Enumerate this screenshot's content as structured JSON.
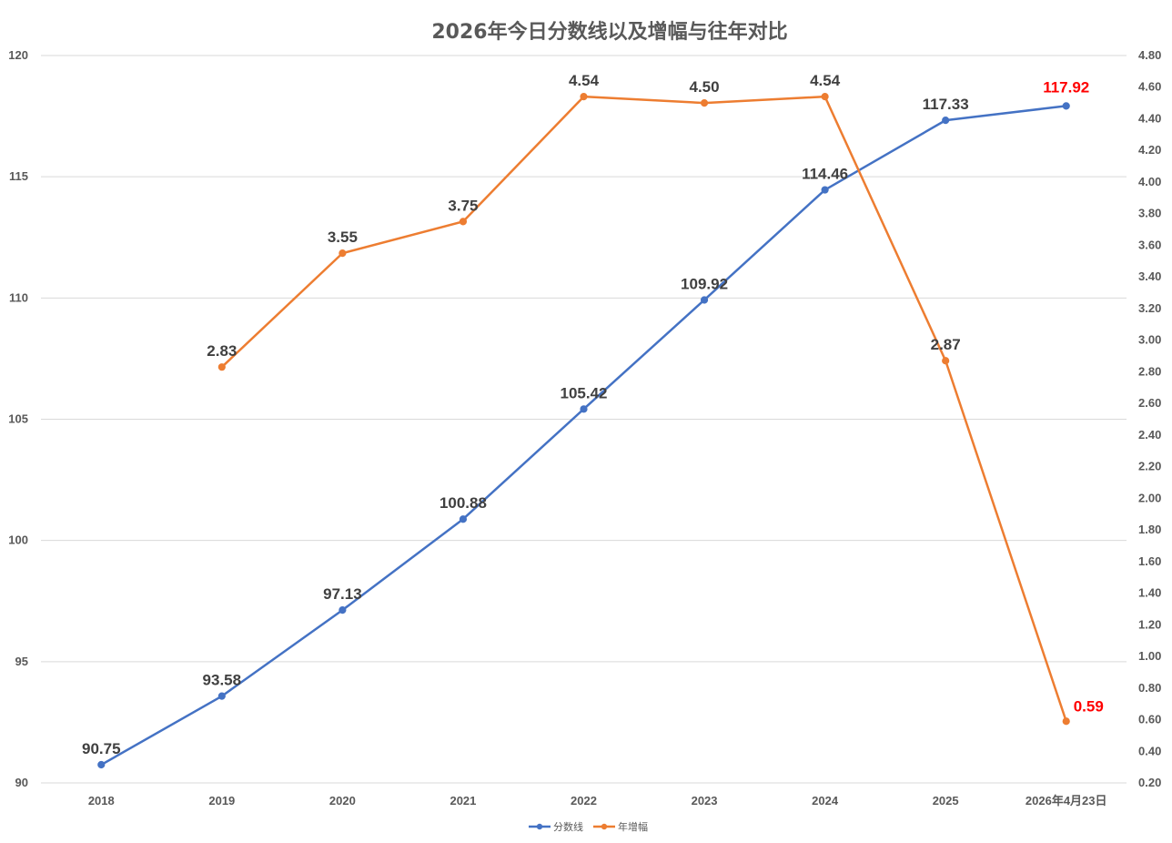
{
  "chart_data": {
    "type": "line",
    "title": "2026年今日分数线以及增幅与往年对比",
    "categories": [
      "2018",
      "2019",
      "2020",
      "2021",
      "2022",
      "2023",
      "2024",
      "2025",
      "2026年4月23日"
    ],
    "series": [
      {
        "name": "分数线",
        "axis": "left",
        "color": "#4472C4",
        "values": [
          90.75,
          93.58,
          97.13,
          100.88,
          105.42,
          109.92,
          114.46,
          117.33,
          117.92
        ],
        "labels": [
          "90.75",
          "93.58",
          "97.13",
          "100.88",
          "105.42",
          "109.92",
          "114.46",
          "117.33",
          "117.92"
        ],
        "highlight_last": true
      },
      {
        "name": "年增幅",
        "axis": "right",
        "color": "#ED7D31",
        "values": [
          null,
          2.83,
          3.55,
          3.75,
          4.54,
          4.5,
          4.54,
          2.87,
          0.59
        ],
        "labels": [
          null,
          "2.83",
          "3.55",
          "3.75",
          "4.54",
          "4.50",
          "4.54",
          "2.87",
          "0.59"
        ],
        "highlight_last": true
      }
    ],
    "y_left": {
      "min": 90,
      "max": 120,
      "ticks": [
        "90",
        "95",
        "100",
        "105",
        "110",
        "115",
        "120"
      ]
    },
    "y_right": {
      "min": 0.2,
      "max": 4.8,
      "ticks": [
        "0.20",
        "0.40",
        "0.60",
        "0.80",
        "1.00",
        "1.20",
        "1.40",
        "1.60",
        "1.80",
        "2.00",
        "2.20",
        "2.40",
        "2.60",
        "2.80",
        "3.00",
        "3.20",
        "3.40",
        "3.60",
        "3.80",
        "4.00",
        "4.20",
        "4.40",
        "4.60",
        "4.80"
      ]
    },
    "grid": true,
    "legend_position": "bottom",
    "highlight_color": "#FF0000",
    "label_color": "#404040"
  }
}
